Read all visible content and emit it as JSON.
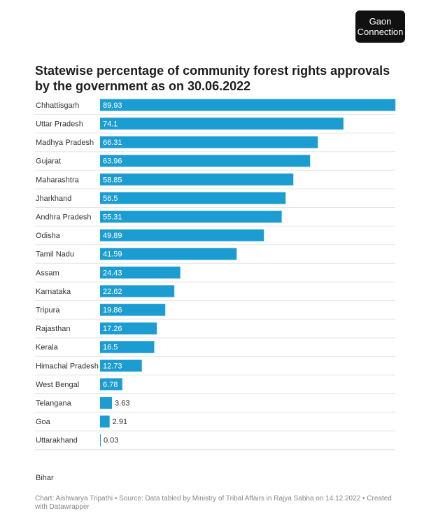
{
  "logo": {
    "line1": "Gaon",
    "line2": "Connection"
  },
  "chart_data": {
    "type": "bar",
    "orientation": "horizontal",
    "title": "Statewise percentage of community forest rights approvals by the government as on 30.06.2022",
    "categories": [
      "Chhattisgarh",
      "Uttar Pradesh",
      "Madhya Pradesh",
      "Gujarat",
      "Maharashtra",
      "Jharkhand",
      "Andhra Pradesh",
      "Odisha",
      "Tamil Nadu",
      "Assam",
      "Karnataka",
      "Tripura",
      "Rajasthan",
      "Kerala",
      "Himachal Pradesh",
      "West Bengal",
      "Telangana",
      "Goa",
      "Uttarakhand",
      "Bihar"
    ],
    "values": [
      89.93,
      74.1,
      66.31,
      63.96,
      58.85,
      56.5,
      55.31,
      49.89,
      41.59,
      24.43,
      22.62,
      19.86,
      17.26,
      16.5,
      12.73,
      6.78,
      3.63,
      2.91,
      0.03,
      null
    ],
    "color": "#1c9dd1",
    "xlim": [
      0,
      90
    ],
    "footer": "Chart: Aishwarya Tripathi • Source: Data tabled by Ministry of Tribal Affairs in Rajya Sabha on 14.12.2022 • Created with Datawrapper"
  }
}
